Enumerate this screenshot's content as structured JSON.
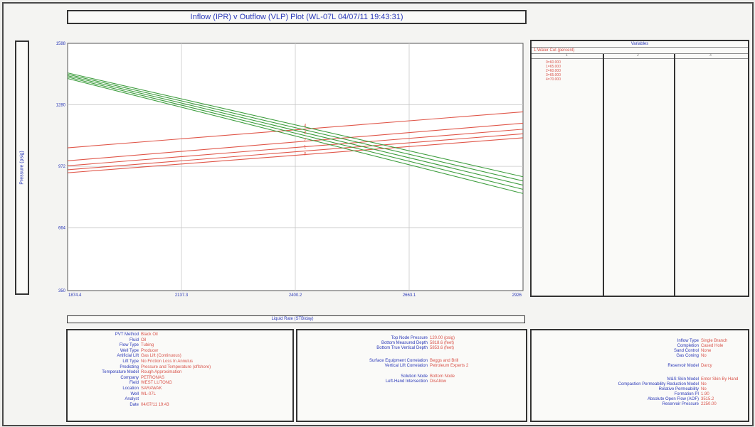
{
  "title": "Inflow (IPR) v Outflow (VLP) Plot (WL-07L 04/07/11 19:43:31)",
  "y_axis_label": "Pressure (psig)",
  "x_axis_label": "Liquid Rate (STB/day)",
  "colors": {
    "ipr": "#3f9e3f",
    "vlp": "#e0574a",
    "label_blue": "#2a38b8",
    "value_red": "#d9534a"
  },
  "chart_data": {
    "type": "line",
    "xlabel": "Liquid Rate (STB/day)",
    "ylabel": "Pressure (psig)",
    "xlim": [
      1874.4,
      2926
    ],
    "ylim": [
      350,
      1588
    ],
    "x_ticks": [
      "1874.4",
      "2137.3",
      "2400.2",
      "2663.1",
      "2926"
    ],
    "y_ticks": [
      "350",
      "664",
      "972",
      "1280",
      "1588"
    ],
    "grid": true,
    "ipr_curves": [
      {
        "x": [
          1874.4,
          2926
        ],
        "y": [
          1440,
          920
        ]
      },
      {
        "x": [
          1874.4,
          2926
        ],
        "y": [
          1433,
          899
        ]
      },
      {
        "x": [
          1874.4,
          2926
        ],
        "y": [
          1426,
          878
        ]
      },
      {
        "x": [
          1874.4,
          2926
        ],
        "y": [
          1419,
          857
        ]
      },
      {
        "x": [
          1874.4,
          2926
        ],
        "y": [
          1412,
          836
        ]
      }
    ],
    "vlp_curves": [
      {
        "x": [
          1874.4,
          2926
        ],
        "y": [
          1065,
          1245
        ]
      },
      {
        "x": [
          1874.4,
          2926
        ],
        "y": [
          1000,
          1188
        ]
      },
      {
        "x": [
          1874.4,
          2926
        ],
        "y": [
          975,
          1158
        ]
      },
      {
        "x": [
          1874.4,
          2926
        ],
        "y": [
          955,
          1135
        ]
      },
      {
        "x": [
          1874.4,
          2926
        ],
        "y": [
          940,
          1115
        ]
      }
    ],
    "intersection_labels": [
      "4",
      "3",
      "2",
      "1",
      "0"
    ]
  },
  "variables": {
    "title": "Variables",
    "header": "1:Water Cut (percent)",
    "subheaders": [
      "1",
      "2",
      "3"
    ],
    "items": [
      "0=60.000",
      "1=65.000",
      "2=60.000",
      "3=65.000",
      "4=70.000"
    ]
  },
  "info_left": [
    {
      "label": "PVT Method",
      "value": "Black Oil"
    },
    {
      "label": "Fluid",
      "value": "Oil"
    },
    {
      "label": "Flow Type",
      "value": "Tubing"
    },
    {
      "label": "Well Type",
      "value": "Producer"
    },
    {
      "label": "Artificial Lift",
      "value": "Gas Lift (Continuous)"
    },
    {
      "label": "Lift Type",
      "value": "No Friction Loss In Annulus"
    },
    {
      "label": "Predicting",
      "value": "Pressure and Temperature (offshore)"
    },
    {
      "label": "Temperature Model",
      "value": "Rough Approximation"
    },
    {
      "label": "Company",
      "value": "PETRONAS"
    },
    {
      "label": "Field",
      "value": "WEST LUTONG"
    },
    {
      "label": "Location",
      "value": "SARAWAK"
    },
    {
      "label": "Well",
      "value": "WL-07L"
    },
    {
      "label": "Analyst",
      "value": ""
    },
    {
      "label": "Date",
      "value": "04/07/11 19:43"
    }
  ],
  "info_mid_a": [
    {
      "label": "Top Node Pressure",
      "value": "120.00  (psig)"
    },
    {
      "label": "Bottom Measured Depth",
      "value": "5818.6  (feet)"
    },
    {
      "label": "Bottom True Vertical Depth",
      "value": "5853.6  (feet)"
    }
  ],
  "info_mid_b": [
    {
      "label": "Surface Equipment Correlation",
      "value": "Beggs and Brill"
    },
    {
      "label": "Vertical Lift Correlation",
      "value": "Petroleum Experts 2"
    }
  ],
  "info_mid_c": [
    {
      "label": "Solution Node",
      "value": "Bottom Node"
    },
    {
      "label": "Left-Hand Intersection",
      "value": "DisAllow"
    }
  ],
  "info_right_a": [
    {
      "label": "Inflow Type",
      "value": "Single Branch"
    },
    {
      "label": "Completion",
      "value": "Cased Hole"
    },
    {
      "label": "Sand Control",
      "value": "None"
    },
    {
      "label": "Gas Coning",
      "value": "No"
    }
  ],
  "info_right_b": [
    {
      "label": "Reservoir Model",
      "value": "Darcy"
    }
  ],
  "info_right_c": [
    {
      "label": "M&S Skin Model",
      "value": "Enter Skin By Hand"
    },
    {
      "label": "Compaction Permeability Reduction Model",
      "value": "No"
    },
    {
      "label": "Relative Permeability",
      "value": "No"
    },
    {
      "label": "Formation PI",
      "value": "1.90"
    },
    {
      "label": "Absolute Open Flow (AOF)",
      "value": "3515.2"
    },
    {
      "label": "Reservoir Pressure",
      "value": "2250.00"
    }
  ]
}
